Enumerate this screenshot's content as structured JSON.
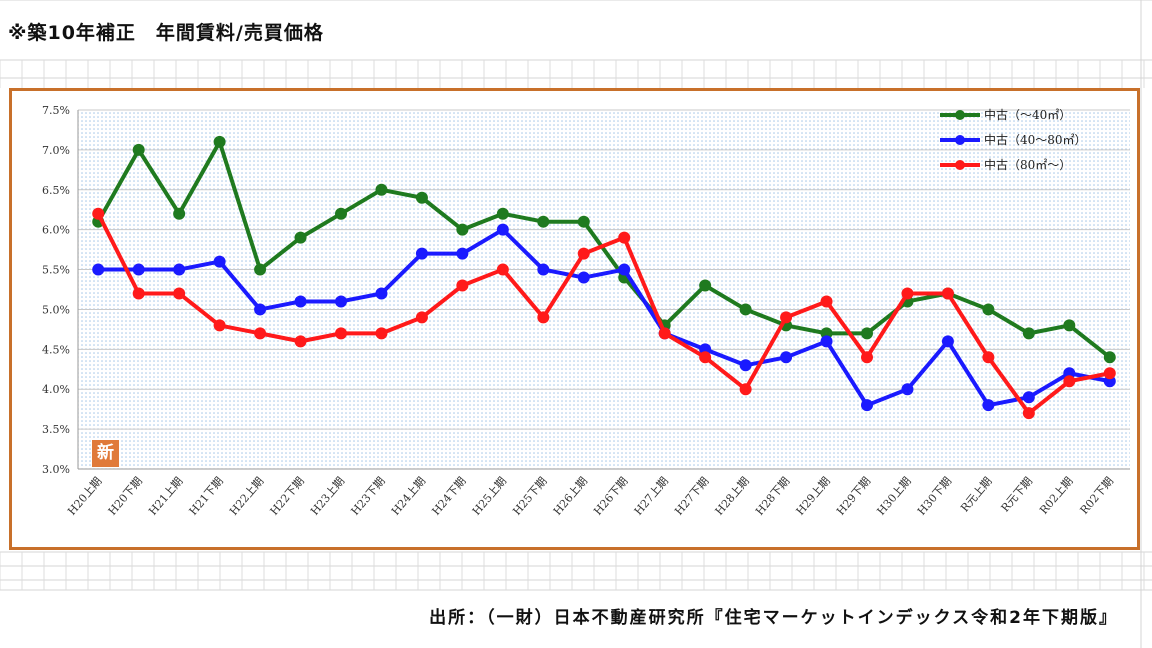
{
  "title": "※築10年補正　年間賃料/売買価格",
  "source": "出所：（一財）日本不動産研究所『住宅マーケットインデックス令和2年下期版』",
  "badge": "新",
  "colors": {
    "frame": "#c8702a",
    "series": [
      "#1f7a1f",
      "#1a1aff",
      "#ff1a1a"
    ],
    "plot_dots": "#9fc3e6"
  },
  "chart_data": {
    "type": "line",
    "title": "",
    "xlabel": "",
    "ylabel": "",
    "ylim": [
      3.0,
      7.5
    ],
    "y_ticks": [
      "3.0%",
      "3.5%",
      "4.0%",
      "4.5%",
      "5.0%",
      "5.5%",
      "6.0%",
      "6.5%",
      "7.0%",
      "7.5%"
    ],
    "grid": true,
    "legend_position": "top-right",
    "categories": [
      "H20上期",
      "H20下期",
      "H21上期",
      "H21下期",
      "H22上期",
      "H22下期",
      "H23上期",
      "H23下期",
      "H24上期",
      "H24下期",
      "H25上期",
      "H25下期",
      "H26上期",
      "H26下期",
      "H27上期",
      "H27下期",
      "H28上期",
      "H28下期",
      "H29上期",
      "H29下期",
      "H30上期",
      "H30下期",
      "R元上期",
      "R元下期",
      "R02上期",
      "R02下期"
    ],
    "series": [
      {
        "name": "中古（～40㎡）",
        "values": [
          6.1,
          7.0,
          6.2,
          7.1,
          5.5,
          5.9,
          6.2,
          6.5,
          6.4,
          6.0,
          6.2,
          6.1,
          6.1,
          5.4,
          4.8,
          5.3,
          5.0,
          4.8,
          4.7,
          4.7,
          5.1,
          5.2,
          5.0,
          4.7,
          4.8,
          4.4
        ]
      },
      {
        "name": "中古（40～80㎡）",
        "values": [
          5.5,
          5.5,
          5.5,
          5.6,
          5.0,
          5.1,
          5.1,
          5.2,
          5.7,
          5.7,
          6.0,
          5.5,
          5.4,
          5.5,
          4.7,
          4.5,
          4.3,
          4.4,
          4.6,
          3.8,
          4.0,
          4.6,
          3.8,
          3.9,
          4.2,
          4.1
        ]
      },
      {
        "name": "中古（80㎡～）",
        "values": [
          6.2,
          5.2,
          5.2,
          4.8,
          4.7,
          4.6,
          4.7,
          4.7,
          4.9,
          5.3,
          5.5,
          4.9,
          5.7,
          5.9,
          4.7,
          4.4,
          4.0,
          4.9,
          5.1,
          4.4,
          5.2,
          5.2,
          4.4,
          3.7,
          4.1,
          4.2
        ]
      }
    ]
  }
}
